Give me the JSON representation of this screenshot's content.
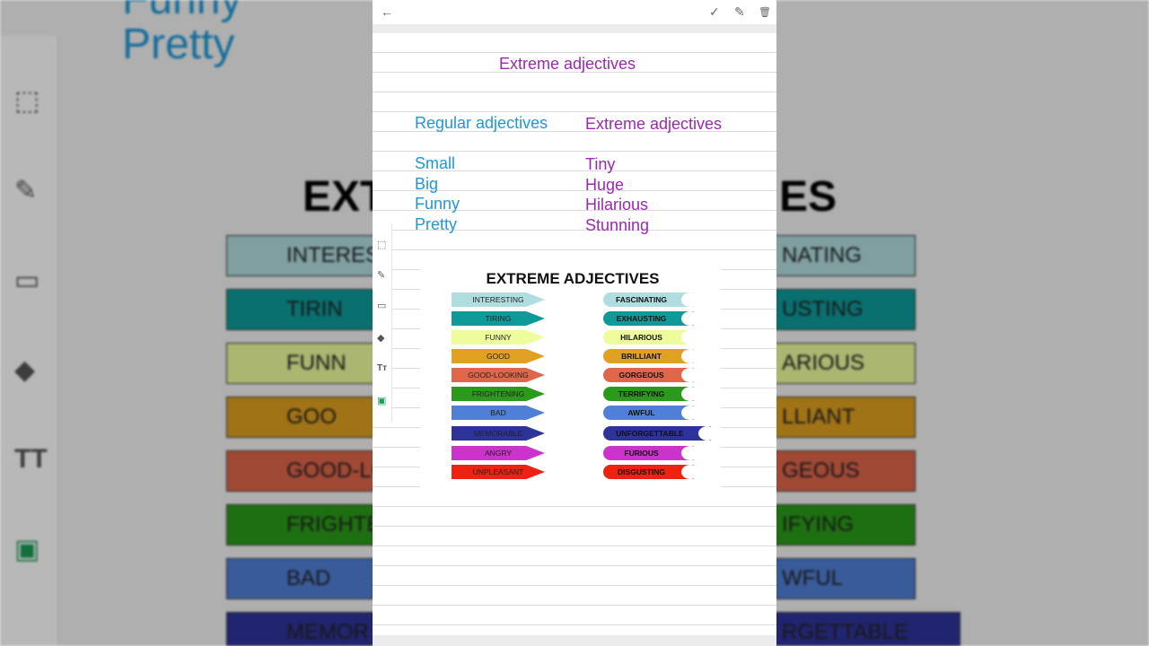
{
  "background": {
    "words": [
      "Funny",
      "Pretty"
    ],
    "title": "EXT",
    "title_end": "ES",
    "left_bands": [
      {
        "label": "INTERES",
        "color": "#b0dde0"
      },
      {
        "label": "TIRIN",
        "color": "#0f9a9a"
      },
      {
        "label": "FUNN",
        "color": "#eefc9c"
      },
      {
        "label": "GOO",
        "color": "#e0a020"
      },
      {
        "label": "GOOD-LO",
        "color": "#e0664a"
      },
      {
        "label": "FRIGHTE",
        "color": "#2a9a1a"
      },
      {
        "label": "BAD",
        "color": "#4f7fd6"
      },
      {
        "label": "MEMOR",
        "color": "#2e3399"
      }
    ],
    "right_bands": [
      {
        "label": "NATING",
        "color": "#b0dde0"
      },
      {
        "label": "USTING",
        "color": "#0f9a9a"
      },
      {
        "label": "ARIOUS",
        "color": "#eefc9c"
      },
      {
        "label": "LLIANT",
        "color": "#e0a020"
      },
      {
        "label": "GEOUS",
        "color": "#e0664a"
      },
      {
        "label": "IFYING",
        "color": "#2a9a1a"
      },
      {
        "label": "WFUL",
        "color": "#4f7fd6"
      },
      {
        "label": "RGETTABLE",
        "color": "#2e3399"
      }
    ]
  },
  "toolbar": {
    "back": "←",
    "check": "✓",
    "edit": "✎",
    "delete": "🗑"
  },
  "note": {
    "title": "Extreme adjectives",
    "col1_header": "Regular  adjectives",
    "col2_header": "Extreme adjectives",
    "regular": [
      "Small",
      "Big",
      "Funny",
      "Pretty"
    ],
    "extreme": [
      "Tiny",
      "Huge",
      "Hilarious",
      "Stunning"
    ]
  },
  "tools": [
    "select-icon",
    "pen-icon",
    "rectangle-icon",
    "eraser-icon",
    "text-icon",
    "add-image-icon"
  ],
  "image": {
    "title": "EXTREME ADJECTIVES",
    "pairs": [
      {
        "regular": "INTERESTING",
        "extreme": "FASCINATING",
        "color": "#b0dde0"
      },
      {
        "regular": "TIRING",
        "extreme": "EXHAUSTING",
        "color": "#0f9a9a"
      },
      {
        "regular": "FUNNY",
        "extreme": "HILARIOUS",
        "color": "#eefc9c"
      },
      {
        "regular": "GOOD",
        "extreme": "BRILLIANT",
        "color": "#e0a020"
      },
      {
        "regular": "GOOD-LOOKING",
        "extreme": "GORGEOUS",
        "color": "#e0664a"
      },
      {
        "regular": "FRIGHTENING",
        "extreme": "TERRIFYING",
        "color": "#2a9a1a"
      },
      {
        "regular": "BAD",
        "extreme": "AWFUL",
        "color": "#4f7fd6"
      },
      {
        "regular": "MEMORABLE",
        "extreme": "UNFORGETTABLE",
        "color": "#2e3399"
      },
      {
        "regular": "ANGRY",
        "extreme": "FURIOUS",
        "color": "#cc33cc"
      },
      {
        "regular": "UNPLEASANT",
        "extreme": "DISGUSTING",
        "color": "#ee2211"
      }
    ]
  }
}
